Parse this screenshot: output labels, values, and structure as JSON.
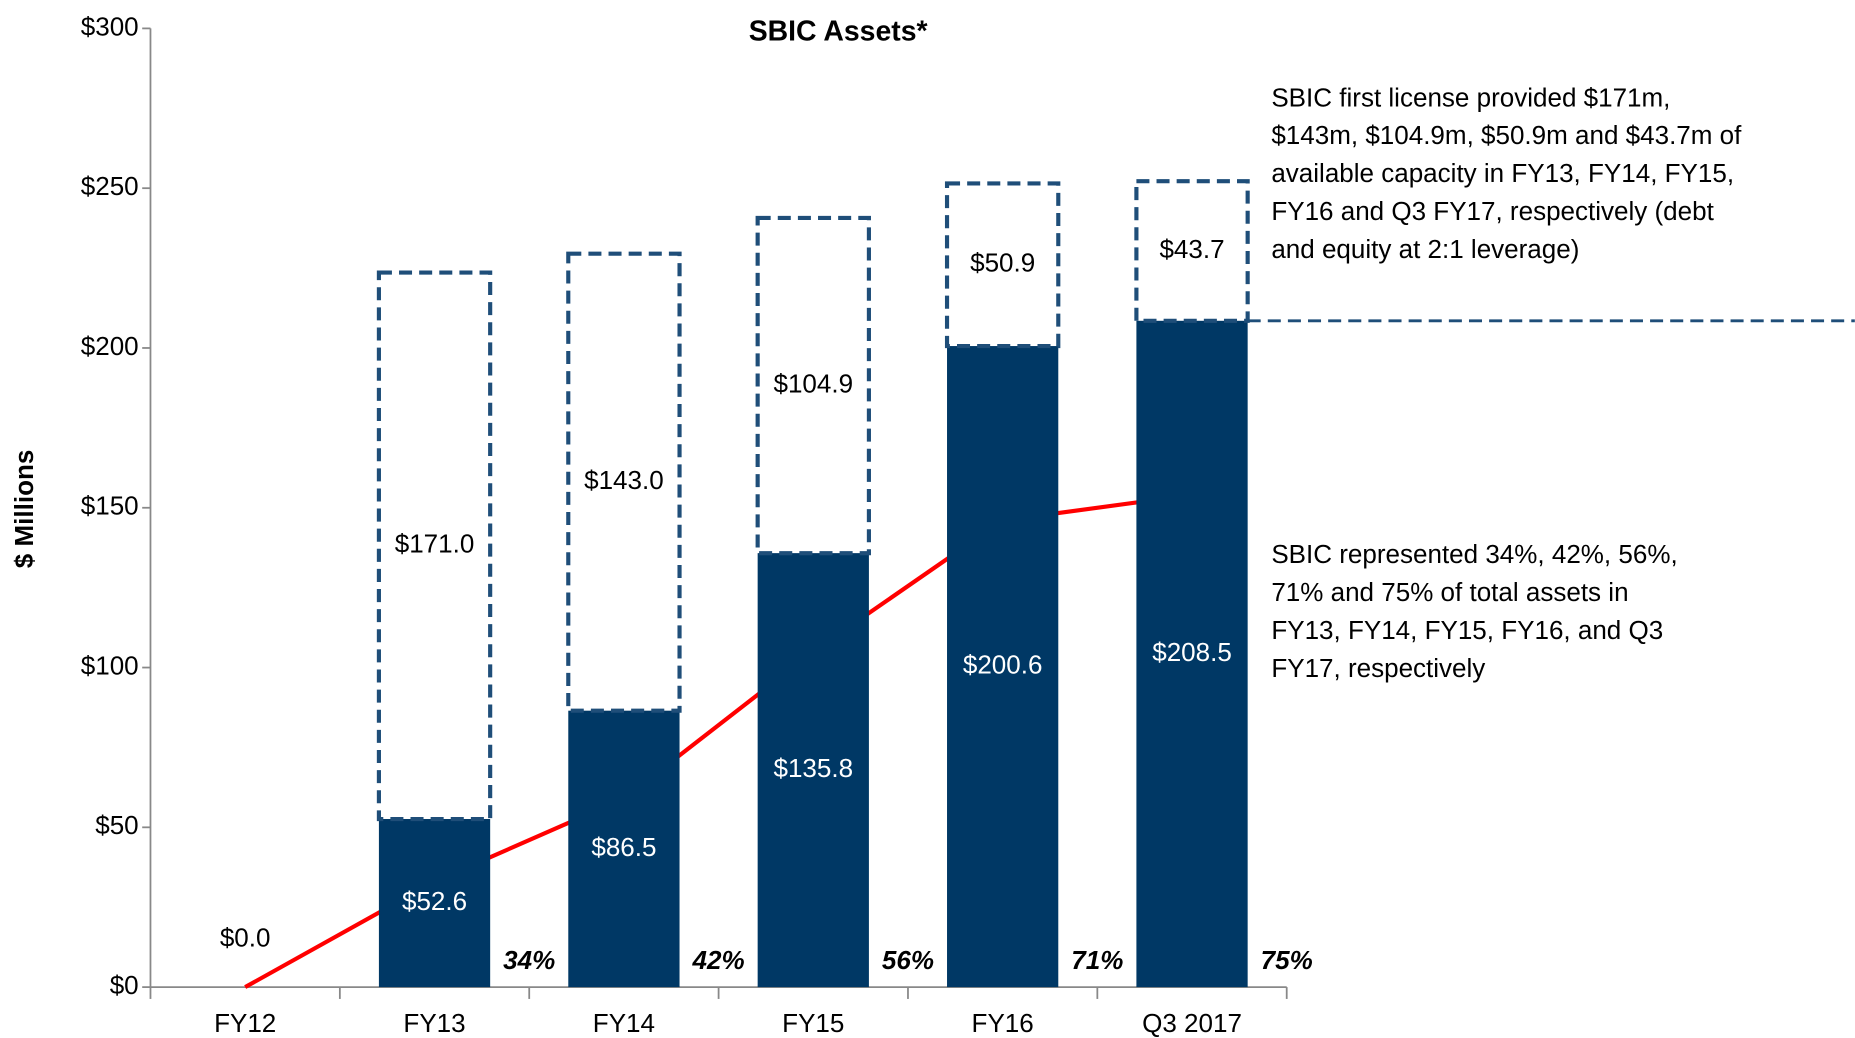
{
  "chart_data": {
    "type": "bar",
    "title": "SBIC Assets*",
    "y_label": "$ Millions",
    "stacked": true,
    "categories": [
      "FY12",
      "FY13",
      "FY14",
      "FY15",
      "FY16",
      "Q3 2017"
    ],
    "series": [
      {
        "color": "#003865",
        "values": [
          0,
          52.6,
          86.5,
          135.8,
          200.6,
          208.5
        ],
        "value_labels": [
          "$0.0",
          "$52.6",
          "$86.5",
          "$135.8",
          "$200.6",
          "$208.5"
        ]
      },
      {
        "color": "#1f4e79",
        "dashed": true,
        "values": [
          null,
          171,
          143,
          104.9,
          50.9,
          43.7
        ],
        "value_labels": [
          null,
          "$171.0",
          "$143.0",
          "$104.9",
          "$50.9",
          "$43.7"
        ]
      },
      {
        "type": "line",
        "color": "#ff0000",
        "values": [
          0,
          33,
          59,
          105,
          146,
          154
        ]
      }
    ],
    "percent_labels": [
      "34%",
      "42%",
      "56%",
      "71%",
      "75%"
    ],
    "ylim": [
      0,
      300
    ],
    "yticks": [
      {
        "value": 0,
        "label": "$0"
      },
      {
        "value": 50,
        "label": "$50"
      },
      {
        "value": 100,
        "label": "$100"
      },
      {
        "value": 150,
        "label": "$150"
      },
      {
        "value": 200,
        "label": "$200"
      },
      {
        "value": 250,
        "label": "$250"
      },
      {
        "value": 300,
        "label": "$300"
      }
    ],
    "annotations": [
      [
        "SBIC first license provided $171m,",
        "$143m, $104.9m, $50.9m and $43.7m of",
        "available capacity in FY13, FY14, FY15,",
        "FY16 and Q3 FY17, respectively (debt",
        "and equity at 2:1 leverage)"
      ],
      [
        "SBIC represented 34%, 42%, 56%,",
        "71% and 75% of total assets in",
        "FY13, FY14, FY15, FY16, and Q3",
        "FY17, respectively"
      ]
    ]
  }
}
